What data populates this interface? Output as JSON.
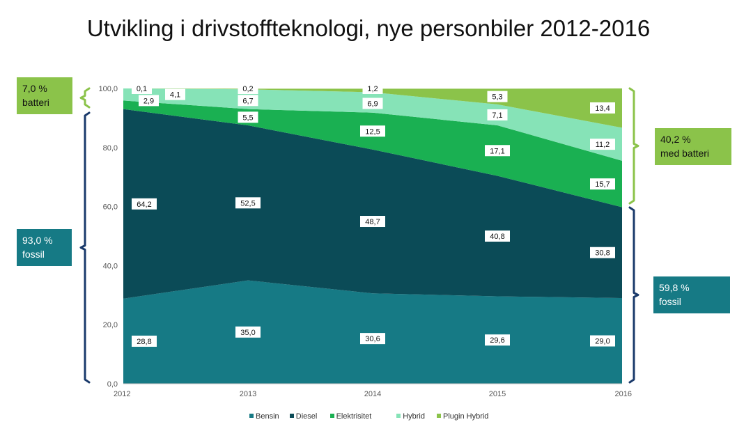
{
  "title": "Utvikling i drivstoffteknologi, nye personbiler 2012-2016",
  "callouts": {
    "left_battery": {
      "line1": "7,0 %",
      "line2": "batteri",
      "color": "#8bc34a"
    },
    "left_fossil": {
      "line1": "93,0 %",
      "line2": "fossil",
      "color": "#167a85"
    },
    "right_battery": {
      "line1": "40,2 %",
      "line2": "med batteri",
      "color": "#8bc34a"
    },
    "right_fossil": {
      "line1": "59,8 %",
      "line2": "fossil",
      "color": "#167a85"
    }
  },
  "chart_data": {
    "type": "area",
    "stacked": true,
    "title": "Utvikling i drivstoffteknologi, nye personbiler 2012-2016",
    "x": [
      "2012",
      "2013",
      "2014",
      "2015",
      "2016"
    ],
    "ylim": [
      0,
      100
    ],
    "yticks": [
      "0,0",
      "20,0",
      "40,0",
      "60,0",
      "80,0",
      "100,0"
    ],
    "legend_position": "bottom",
    "series": [
      {
        "name": "Bensin",
        "color": "#167a85",
        "values": [
          28.8,
          35.0,
          30.6,
          29.6,
          29.0
        ],
        "labels": [
          "28,8",
          "35,0",
          "30,6",
          "29,6",
          "29,0"
        ]
      },
      {
        "name": "Diesel",
        "color": "#0b4b57",
        "values": [
          64.2,
          52.5,
          48.7,
          40.8,
          30.8
        ],
        "labels": [
          "64,2",
          "52,5",
          "48,7",
          "40,8",
          "30,8"
        ]
      },
      {
        "name": "Elektrisitet",
        "color": "#1ab052",
        "values": [
          2.9,
          5.5,
          12.5,
          17.1,
          15.7
        ],
        "labels": [
          "2,9",
          "5,5",
          "12,5",
          "17,1",
          "15,7"
        ]
      },
      {
        "name": "Hybrid",
        "color": "#86e3b7",
        "values": [
          4.1,
          6.7,
          6.9,
          7.1,
          11.2
        ],
        "labels": [
          "4,1",
          "6,7",
          "6,9",
          "7,1",
          "11,2"
        ]
      },
      {
        "name": "Plugin Hybrid",
        "color": "#8bc34a",
        "values": [
          0.1,
          0.2,
          1.2,
          5.3,
          13.4
        ],
        "labels": [
          "0,1",
          "0,2",
          "1,2",
          "5,3",
          "13,4"
        ]
      }
    ]
  }
}
